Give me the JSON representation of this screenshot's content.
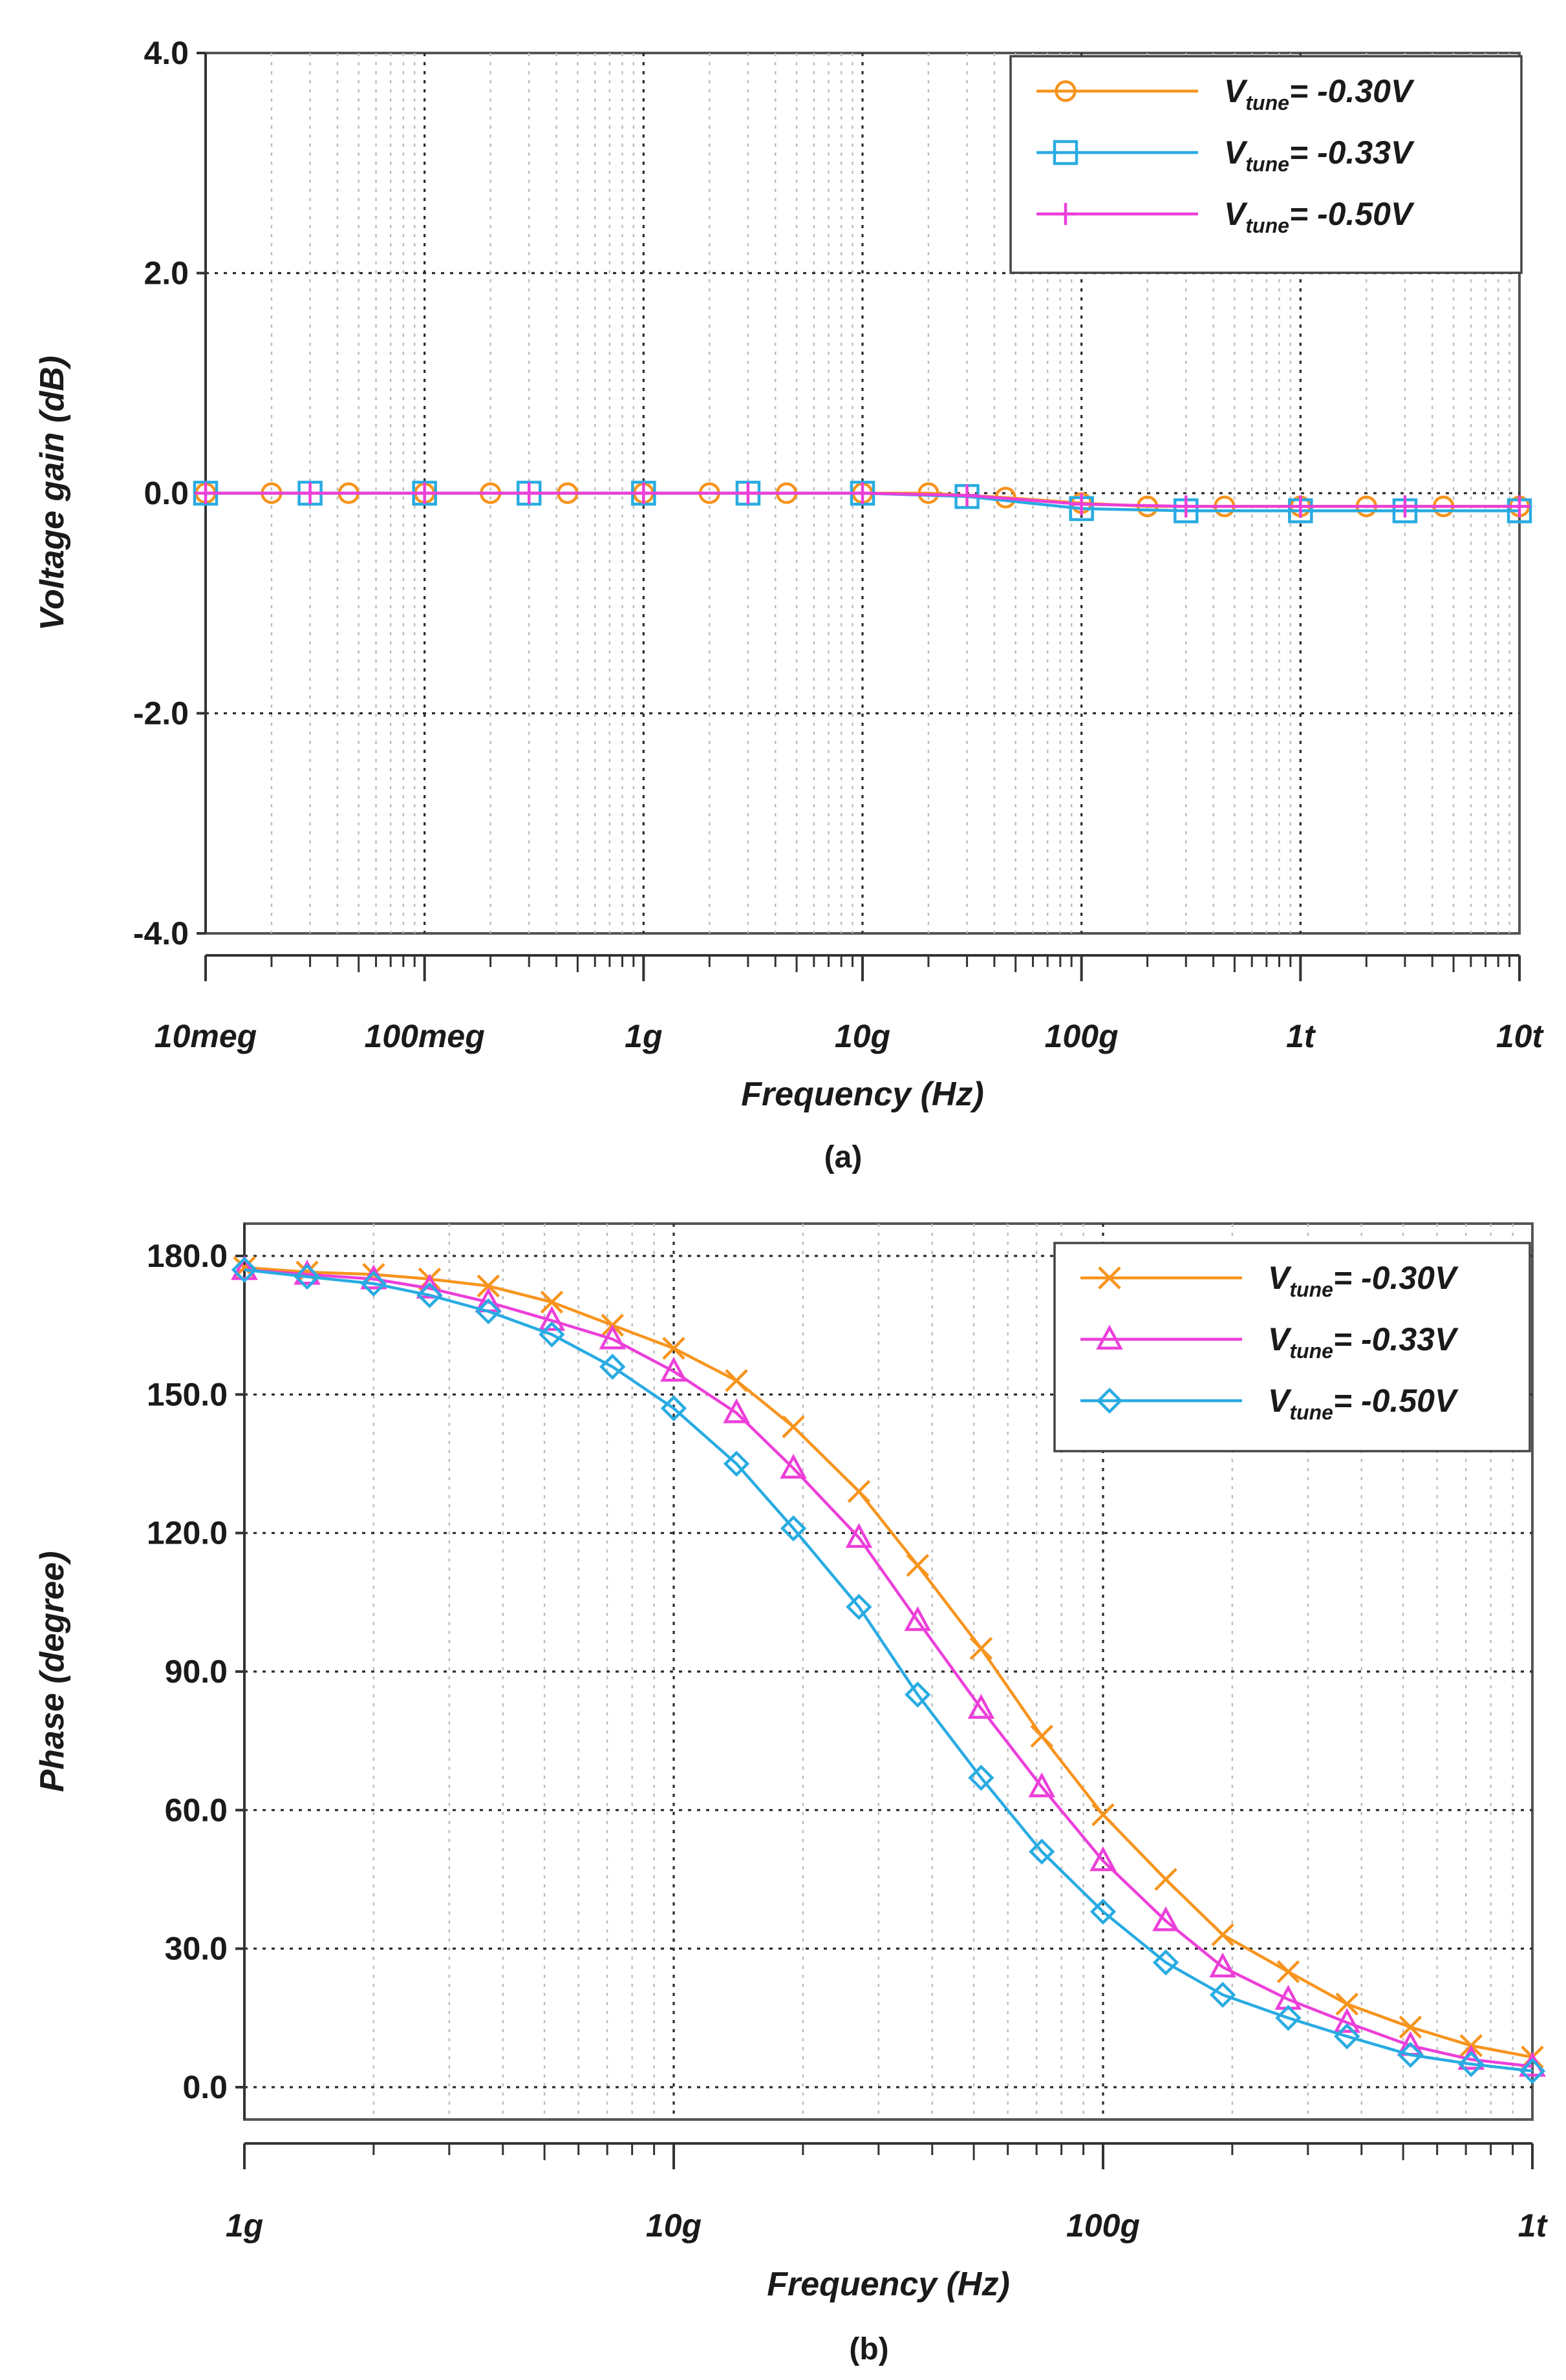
{
  "chart_data": [
    {
      "type": "line",
      "panel_caption": "(a)",
      "xlabel": "Frequency (Hz)",
      "ylabel": "Voltage gain (dB)",
      "xscale": "log",
      "xlim": [
        10000000.0,
        10000000000000.0
      ],
      "ylim": [
        -4.0,
        4.0
      ],
      "x_ticks": [
        10000000.0,
        100000000.0,
        1000000000.0,
        10000000000.0,
        100000000000.0,
        1000000000000.0,
        10000000000000.0
      ],
      "x_tick_labels": [
        "10meg",
        "100meg",
        "1g",
        "10g",
        "100g",
        "1t",
        "10t"
      ],
      "y_ticks": [
        -4.0,
        -2.0,
        0.0,
        2.0,
        4.0
      ],
      "y_tick_labels": [
        "-4.0",
        "-2.0",
        "0.0",
        "2.0",
        "4.0"
      ],
      "grid": true,
      "legend_position": "top-right",
      "series": [
        {
          "name_main": "V",
          "name_sub": "tune",
          "name_rest": "= -0.30V",
          "color": "#F7941D",
          "marker": "circle",
          "x": [
            10000000.0,
            20000000.0,
            45000000.0,
            100000000.0,
            200000000.0,
            450000000.0,
            1000000000.0,
            2000000000.0,
            4500000000.0,
            10000000000.0,
            20000000000.0,
            45000000000.0,
            100000000000.0,
            200000000000.0,
            450000000000.0,
            1000000000000.0,
            2000000000000.0,
            4500000000000.0,
            10000000000000.0
          ],
          "y": [
            0.0,
            0.0,
            0.0,
            0.0,
            0.0,
            0.0,
            0.0,
            0.0,
            0.0,
            0.0,
            0.0,
            -0.04,
            -0.09,
            -0.12,
            -0.12,
            -0.12,
            -0.12,
            -0.12,
            -0.12
          ]
        },
        {
          "name_main": "V",
          "name_sub": "tune",
          "name_rest": "= -0.33V",
          "color": "#29ABE2",
          "marker": "square",
          "x": [
            10000000.0,
            30000000.0,
            100000000.0,
            300000000.0,
            1000000000.0,
            3000000000.0,
            10000000000.0,
            30000000000.0,
            100000000000.0,
            300000000000.0,
            1000000000000.0,
            3000000000000.0,
            10000000000000.0
          ],
          "y": [
            0.0,
            0.0,
            0.0,
            0.0,
            0.0,
            0.0,
            0.0,
            -0.03,
            -0.14,
            -0.16,
            -0.16,
            -0.16,
            -0.16
          ]
        },
        {
          "name_main": "V",
          "name_sub": "tune",
          "name_rest": "= -0.50V",
          "color": "#EC3FD9",
          "marker": "plus",
          "x": [
            10000000.0,
            30000000.0,
            100000000.0,
            300000000.0,
            1000000000.0,
            3000000000.0,
            10000000000.0,
            30000000000.0,
            100000000000.0,
            300000000000.0,
            1000000000000.0,
            3000000000000.0,
            10000000000000.0
          ],
          "y": [
            0.0,
            0.0,
            0.0,
            0.0,
            0.0,
            0.0,
            0.0,
            -0.02,
            -0.1,
            -0.12,
            -0.12,
            -0.12,
            -0.12
          ]
        }
      ]
    },
    {
      "type": "line",
      "panel_caption": "(b)",
      "xlabel": "Frequency (Hz)",
      "ylabel": "Phase (degree)",
      "xscale": "log",
      "xlim": [
        1000000000.0,
        1000000000000.0
      ],
      "ylim": [
        -7.0,
        187.0
      ],
      "x_ticks": [
        1000000000.0,
        10000000000.0,
        100000000000.0,
        1000000000000.0
      ],
      "x_tick_labels": [
        "1g",
        "10g",
        "100g",
        "1t"
      ],
      "y_ticks": [
        0.0,
        30.0,
        60.0,
        90.0,
        120.0,
        150.0,
        180.0
      ],
      "y_tick_labels": [
        "0.0",
        "30.0",
        "60.0",
        "90.0",
        "120.0",
        "150.0",
        "180.0"
      ],
      "grid": true,
      "legend_position": "top-right",
      "series": [
        {
          "name_main": "V",
          "name_sub": "tune",
          "name_rest": "= -0.30V",
          "color": "#F7941D",
          "marker": "x",
          "x": [
            1000000000.0,
            1400000000.0,
            2000000000.0,
            2700000000.0,
            3700000000.0,
            5200000000.0,
            7200000000.0,
            10000000000.0,
            14000000000.0,
            19000000000.0,
            27000000000.0,
            37000000000.0,
            52000000000.0,
            72000000000.0,
            100000000000.0,
            140000000000.0,
            190000000000.0,
            270000000000.0,
            370000000000.0,
            520000000000.0,
            720000000000.0,
            1000000000000.0
          ],
          "y": [
            177.5,
            176.5,
            176,
            175,
            173.5,
            170,
            165,
            160,
            153,
            143,
            129,
            113,
            95,
            76,
            59,
            45,
            33,
            25,
            18,
            13,
            9,
            6.5
          ]
        },
        {
          "name_main": "V",
          "name_sub": "tune",
          "name_rest": "= -0.33V",
          "color": "#EC3FD9",
          "marker": "triangle",
          "x": [
            1000000000.0,
            1400000000.0,
            2000000000.0,
            2700000000.0,
            3700000000.0,
            5200000000.0,
            7200000000.0,
            10000000000.0,
            14000000000.0,
            19000000000.0,
            27000000000.0,
            37000000000.0,
            52000000000.0,
            72000000000.0,
            100000000000.0,
            140000000000.0,
            190000000000.0,
            270000000000.0,
            370000000000.0,
            520000000000.0,
            720000000000.0,
            1000000000000.0
          ],
          "y": [
            177,
            176,
            175,
            173,
            170,
            166,
            162,
            155,
            146,
            134,
            119,
            101,
            82,
            65,
            49,
            36,
            26,
            19,
            14,
            9,
            6,
            4.5
          ]
        },
        {
          "name_main": "V",
          "name_sub": "tune",
          "name_rest": "= -0.50V",
          "color": "#29ABE2",
          "marker": "diamond",
          "x": [
            1000000000.0,
            1400000000.0,
            2000000000.0,
            2700000000.0,
            3700000000.0,
            5200000000.0,
            7200000000.0,
            10000000000.0,
            14000000000.0,
            19000000000.0,
            27000000000.0,
            37000000000.0,
            52000000000.0,
            72000000000.0,
            100000000000.0,
            140000000000.0,
            190000000000.0,
            270000000000.0,
            370000000000.0,
            520000000000.0,
            720000000000.0,
            1000000000000.0
          ],
          "y": [
            177,
            175.5,
            174,
            171.5,
            168,
            163,
            156,
            147,
            135,
            121,
            104,
            85,
            67,
            51,
            38,
            27,
            20,
            15,
            11,
            7,
            5,
            3.5
          ]
        }
      ]
    }
  ]
}
